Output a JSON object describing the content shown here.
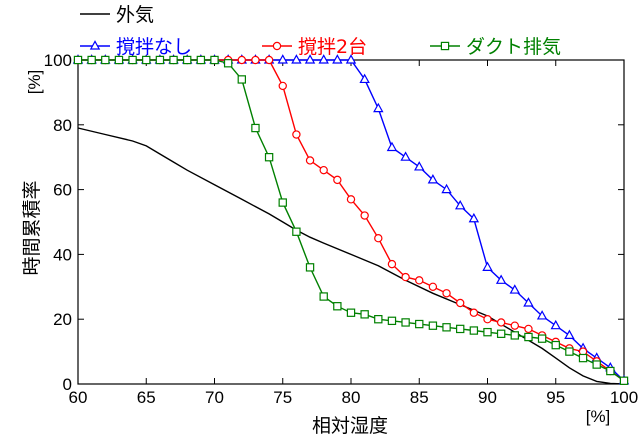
{
  "chart_data": {
    "type": "line",
    "xlabel": "相対湿度",
    "ylabel": "時間累積率",
    "xunit": "[%]",
    "yunit": "[%]",
    "xlim": [
      60,
      100
    ],
    "ylim": [
      0,
      100
    ],
    "xticks": [
      60,
      65,
      70,
      75,
      80,
      85,
      90,
      95,
      100
    ],
    "yticks": [
      0,
      20,
      40,
      60,
      80,
      100
    ],
    "legend_position": "top",
    "series": [
      {
        "name": "外気",
        "color": "#000000",
        "marker": "none",
        "x": [
          60,
          62,
          64,
          65,
          66,
          67,
          68,
          70,
          72,
          74,
          75,
          76,
          77,
          78,
          80,
          82,
          84,
          86,
          88,
          90,
          92,
          94,
          95,
          96,
          97,
          98,
          99,
          100
        ],
        "y": [
          79,
          77,
          75,
          73.5,
          71,
          68.5,
          66,
          61.5,
          57,
          52.5,
          50,
          47.5,
          45.3,
          43.5,
          40,
          36.5,
          32,
          28,
          24.5,
          21,
          16,
          11,
          8,
          5,
          2.5,
          0.8,
          0.2,
          0
        ]
      },
      {
        "name": "撹拌なし",
        "color": "#0000ff",
        "marker": "triangle",
        "x": [
          60,
          61,
          62,
          63,
          64,
          65,
          66,
          67,
          68,
          69,
          70,
          71,
          72,
          73,
          74,
          75,
          76,
          77,
          78,
          79,
          80,
          81,
          82,
          83,
          84,
          85,
          86,
          87,
          88,
          89,
          90,
          91,
          92,
          93,
          94,
          95,
          96,
          97,
          98,
          99,
          100
        ],
        "y": [
          100,
          100,
          100,
          100,
          100,
          100,
          100,
          100,
          100,
          100,
          100,
          100,
          100,
          100,
          100,
          100,
          100,
          100,
          100,
          100,
          100,
          94,
          85,
          73,
          70,
          67,
          63,
          60,
          55,
          51,
          36,
          32,
          29,
          25,
          21,
          18,
          15,
          11,
          8,
          5,
          1
        ]
      },
      {
        "name": "撹拌2台",
        "color": "#ff0000",
        "marker": "circle",
        "x": [
          60,
          61,
          62,
          63,
          64,
          65,
          66,
          67,
          68,
          69,
          70,
          71,
          72,
          73,
          74,
          75,
          76,
          77,
          78,
          79,
          80,
          81,
          82,
          83,
          84,
          85,
          86,
          87,
          88,
          89,
          90,
          91,
          92,
          93,
          94,
          95,
          96,
          97,
          98,
          99,
          100
        ],
        "y": [
          100,
          100,
          100,
          100,
          100,
          100,
          100,
          100,
          100,
          100,
          100,
          100,
          100,
          100,
          100,
          92,
          77,
          69,
          66,
          63,
          57,
          52,
          45,
          37,
          33,
          32,
          30,
          28,
          25,
          22,
          20,
          19,
          18,
          17,
          15,
          13,
          11,
          10,
          7,
          4,
          1
        ]
      },
      {
        "name": "ダクト排気",
        "color": "#008000",
        "marker": "square",
        "x": [
          60,
          61,
          62,
          63,
          64,
          65,
          66,
          67,
          68,
          69,
          70,
          71,
          72,
          73,
          74,
          75,
          76,
          77,
          78,
          79,
          80,
          81,
          82,
          83,
          84,
          85,
          86,
          87,
          88,
          89,
          90,
          91,
          92,
          93,
          94,
          95,
          96,
          97,
          98,
          99,
          100
        ],
        "y": [
          100,
          100,
          100,
          100,
          100,
          100,
          100,
          100,
          100,
          100,
          100,
          99,
          94,
          79,
          70,
          56,
          47,
          36,
          27,
          24,
          22,
          21.5,
          20,
          19.5,
          19,
          18.5,
          18,
          17.5,
          17,
          16.5,
          16,
          15.5,
          15,
          14.5,
          14,
          12,
          10,
          8,
          6,
          4,
          1
        ]
      }
    ]
  }
}
